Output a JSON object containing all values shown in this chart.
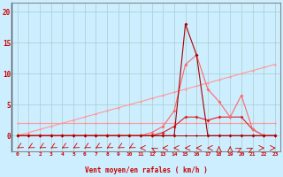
{
  "background_color": "#cceeff",
  "grid_color": "#aacccc",
  "x_values": [
    0,
    1,
    2,
    3,
    4,
    5,
    6,
    7,
    8,
    9,
    10,
    11,
    12,
    13,
    14,
    15,
    16,
    17,
    18,
    19,
    20,
    21,
    22,
    23
  ],
  "x_labels": [
    "0",
    "1",
    "2",
    "3",
    "4",
    "5",
    "6",
    "7",
    "8",
    "9",
    "10",
    "11",
    "12",
    "13",
    "14",
    "15",
    "16",
    "17",
    "18",
    "19",
    "20",
    "21",
    "22",
    "23"
  ],
  "ylabel_text": "Vent moyen/en rafales ( km/h )",
  "yticks": [
    0,
    5,
    10,
    15,
    20
  ],
  "ylim": [
    -2.5,
    21.5
  ],
  "xlim": [
    -0.5,
    23.5
  ],
  "line_flat_y": [
    2.0,
    2.0,
    2.0,
    2.0,
    2.0,
    2.0,
    2.0,
    2.0,
    2.0,
    2.0,
    2.0,
    2.0,
    2.0,
    2.0,
    2.0,
    2.0,
    2.0,
    2.0,
    2.0,
    2.0,
    2.0,
    2.0,
    2.0,
    2.0
  ],
  "line_diag_y": [
    0.0,
    0.5,
    1.0,
    1.5,
    2.0,
    2.5,
    3.0,
    3.5,
    4.0,
    4.5,
    5.0,
    5.5,
    6.0,
    6.5,
    7.0,
    7.5,
    8.0,
    8.5,
    9.0,
    9.5,
    10.0,
    10.5,
    11.0,
    11.5
  ],
  "line_peak_y": [
    0.0,
    0.0,
    0.0,
    0.0,
    0.0,
    0.0,
    0.0,
    0.0,
    0.0,
    0.0,
    0.0,
    0.0,
    0.5,
    1.5,
    4.0,
    11.5,
    13.0,
    7.5,
    5.5,
    3.0,
    6.5,
    1.0,
    0.0,
    0.0
  ],
  "line_low_y": [
    0.0,
    0.0,
    0.0,
    0.0,
    0.0,
    0.0,
    0.0,
    0.0,
    0.0,
    0.0,
    0.0,
    0.0,
    0.0,
    0.5,
    1.5,
    3.0,
    3.0,
    2.5,
    3.0,
    3.0,
    3.0,
    1.0,
    0.0,
    0.0
  ],
  "line_spike_y": [
    0.0,
    0.0,
    0.0,
    0.0,
    0.0,
    0.0,
    0.0,
    0.0,
    0.0,
    0.0,
    0.0,
    0.0,
    0.0,
    0.0,
    0.0,
    18.0,
    13.0,
    0.0,
    0.0,
    0.0,
    0.0,
    0.0,
    0.0,
    0.0
  ],
  "line_zero_y": [
    0.0,
    0.0,
    0.0,
    0.0,
    0.0,
    0.0,
    0.0,
    0.0,
    0.0,
    0.0,
    0.0,
    0.0,
    0.0,
    0.0,
    0.0,
    0.0,
    0.0,
    0.0,
    0.0,
    0.0,
    0.0,
    0.0,
    0.0,
    0.0
  ],
  "color_light": "#ff9999",
  "color_medium": "#ff6666",
  "color_dark": "#dd2222",
  "color_darkest": "#aa0000",
  "arrow_angles": [
    225,
    225,
    225,
    225,
    225,
    225,
    225,
    225,
    225,
    225,
    225,
    270,
    315,
    270,
    270,
    270,
    270,
    270,
    0,
    0,
    45,
    45,
    90,
    90
  ]
}
